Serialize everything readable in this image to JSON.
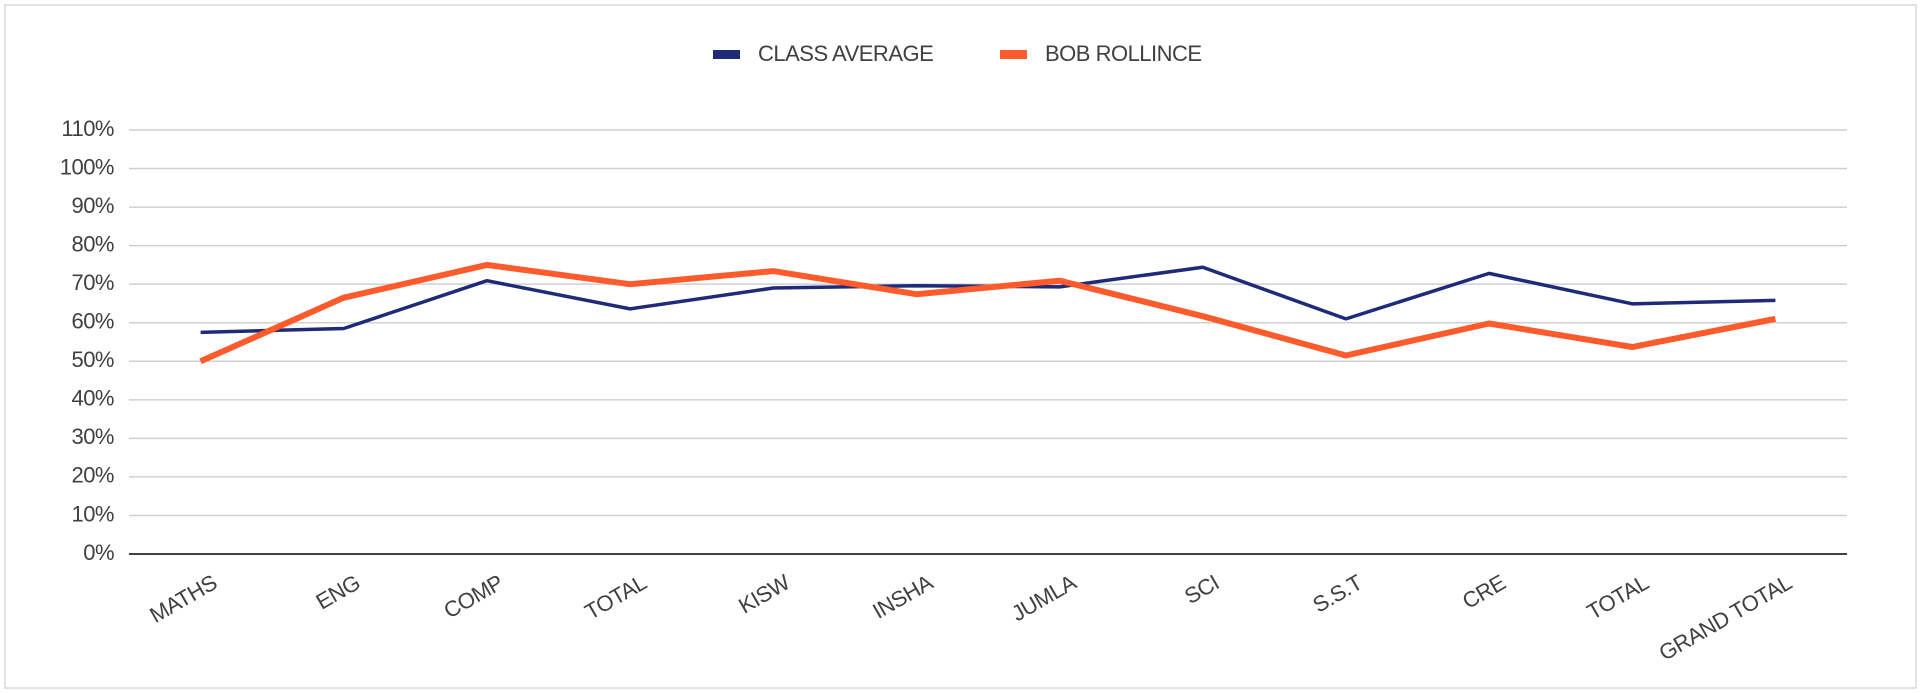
{
  "chart_data": {
    "type": "line",
    "categories": [
      "MATHS",
      "ENG",
      "COMP",
      "TOTAL",
      "KISW",
      "INSHA",
      "JUMLA",
      "SCI",
      "S.S.T",
      "CRE",
      "TOTAL",
      "GRAND TOTAL"
    ],
    "series": [
      {
        "name": "CLASS AVERAGE",
        "color": "#1f2a78",
        "values": [
          57.5,
          58.5,
          70.9,
          63.6,
          69,
          69.6,
          69.3,
          74.4,
          61,
          72.8,
          64.9,
          65.8
        ]
      },
      {
        "name": "BOB  ROLLINCE",
        "color": "#fd5b2b",
        "values": [
          50,
          66.5,
          75,
          70,
          73.4,
          67.4,
          70.9,
          61.7,
          51.5,
          59.8,
          53.7,
          61
        ]
      }
    ],
    "ylim": [
      0,
      110
    ],
    "yticks": [
      {
        "value": 0,
        "label": "0%"
      },
      {
        "value": 10,
        "label": "10%"
      },
      {
        "value": 20,
        "label": "20%"
      },
      {
        "value": 30,
        "label": "30%"
      },
      {
        "value": 40,
        "label": "40%"
      },
      {
        "value": 50,
        "label": "50%"
      },
      {
        "value": 60,
        "label": "60%"
      },
      {
        "value": 70,
        "label": "70%"
      },
      {
        "value": 80,
        "label": "80%"
      },
      {
        "value": 90,
        "label": "90%"
      },
      {
        "value": 100,
        "label": "100%"
      },
      {
        "value": 110,
        "label": "110%"
      }
    ],
    "grid": true,
    "legend": "top"
  }
}
